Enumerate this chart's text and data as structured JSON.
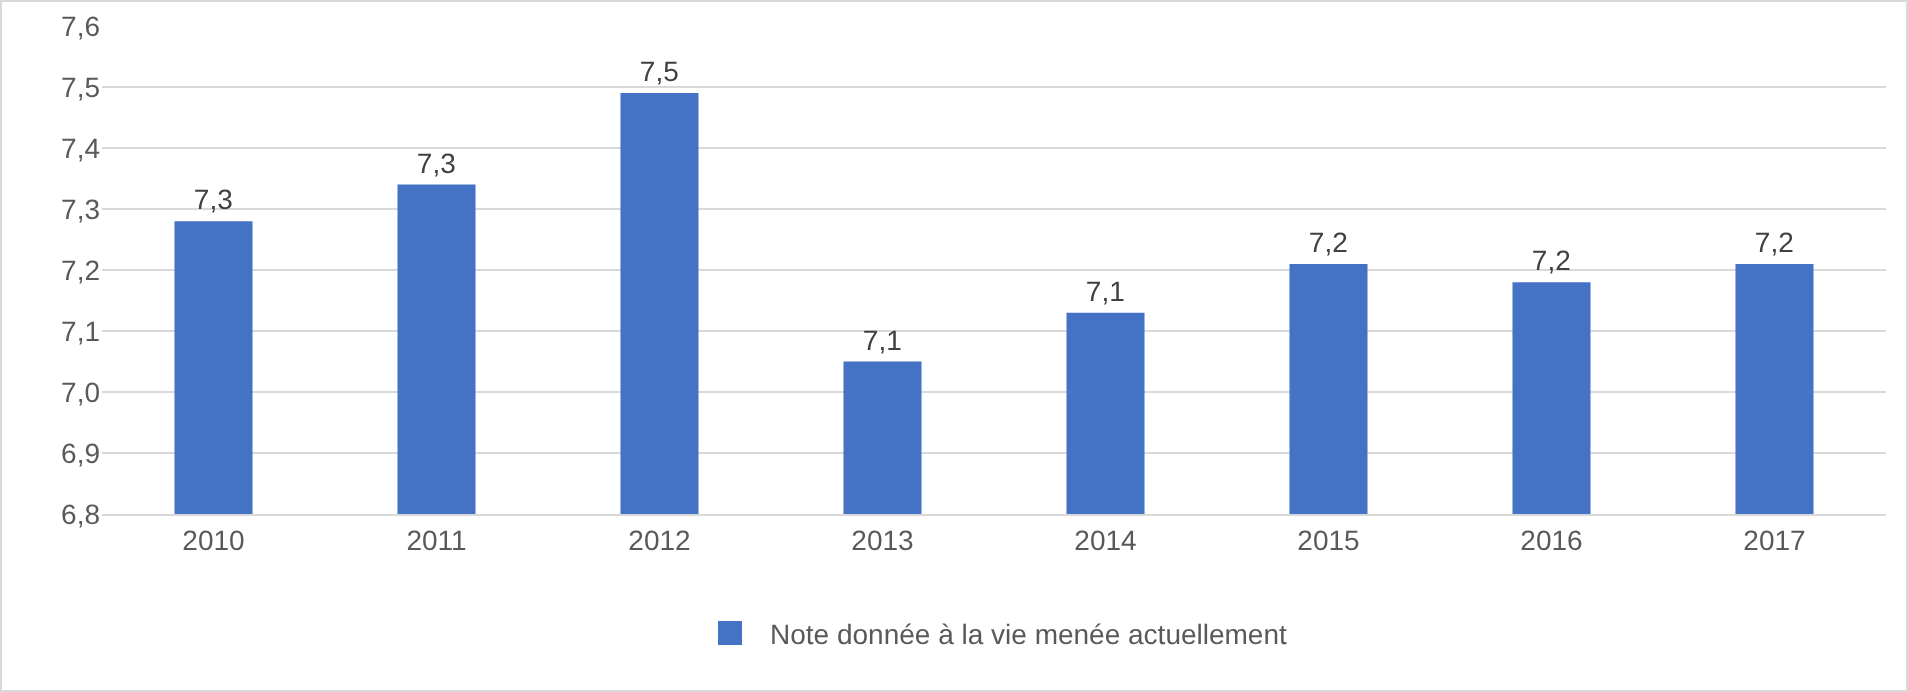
{
  "chart_data": {
    "type": "bar",
    "categories": [
      "2010",
      "2011",
      "2012",
      "2013",
      "2014",
      "2015",
      "2016",
      "2017"
    ],
    "series": [
      {
        "name": "Note donnée à la vie menée actuellement",
        "color": "#4472c4",
        "values": [
          7.28,
          7.34,
          7.49,
          7.05,
          7.13,
          7.21,
          7.18,
          7.21
        ],
        "value_labels": [
          "7,3",
          "7,3",
          "7,5",
          "7,1",
          "7,1",
          "7,2",
          "7,2",
          "7,2"
        ]
      }
    ],
    "ylim": [
      6.8,
      7.6
    ],
    "yticks": [
      {
        "value": 6.8,
        "label": "6,8"
      },
      {
        "value": 6.9,
        "label": "6,9"
      },
      {
        "value": 7.0,
        "label": "7,0"
      },
      {
        "value": 7.1,
        "label": "7,1"
      },
      {
        "value": 7.2,
        "label": "7,2"
      },
      {
        "value": 7.3,
        "label": "7,3"
      },
      {
        "value": 7.4,
        "label": "7,4"
      },
      {
        "value": 7.5,
        "label": "7,5"
      },
      {
        "value": 7.6,
        "label": "7,6"
      }
    ],
    "grid": "y",
    "legend": "bottom"
  }
}
